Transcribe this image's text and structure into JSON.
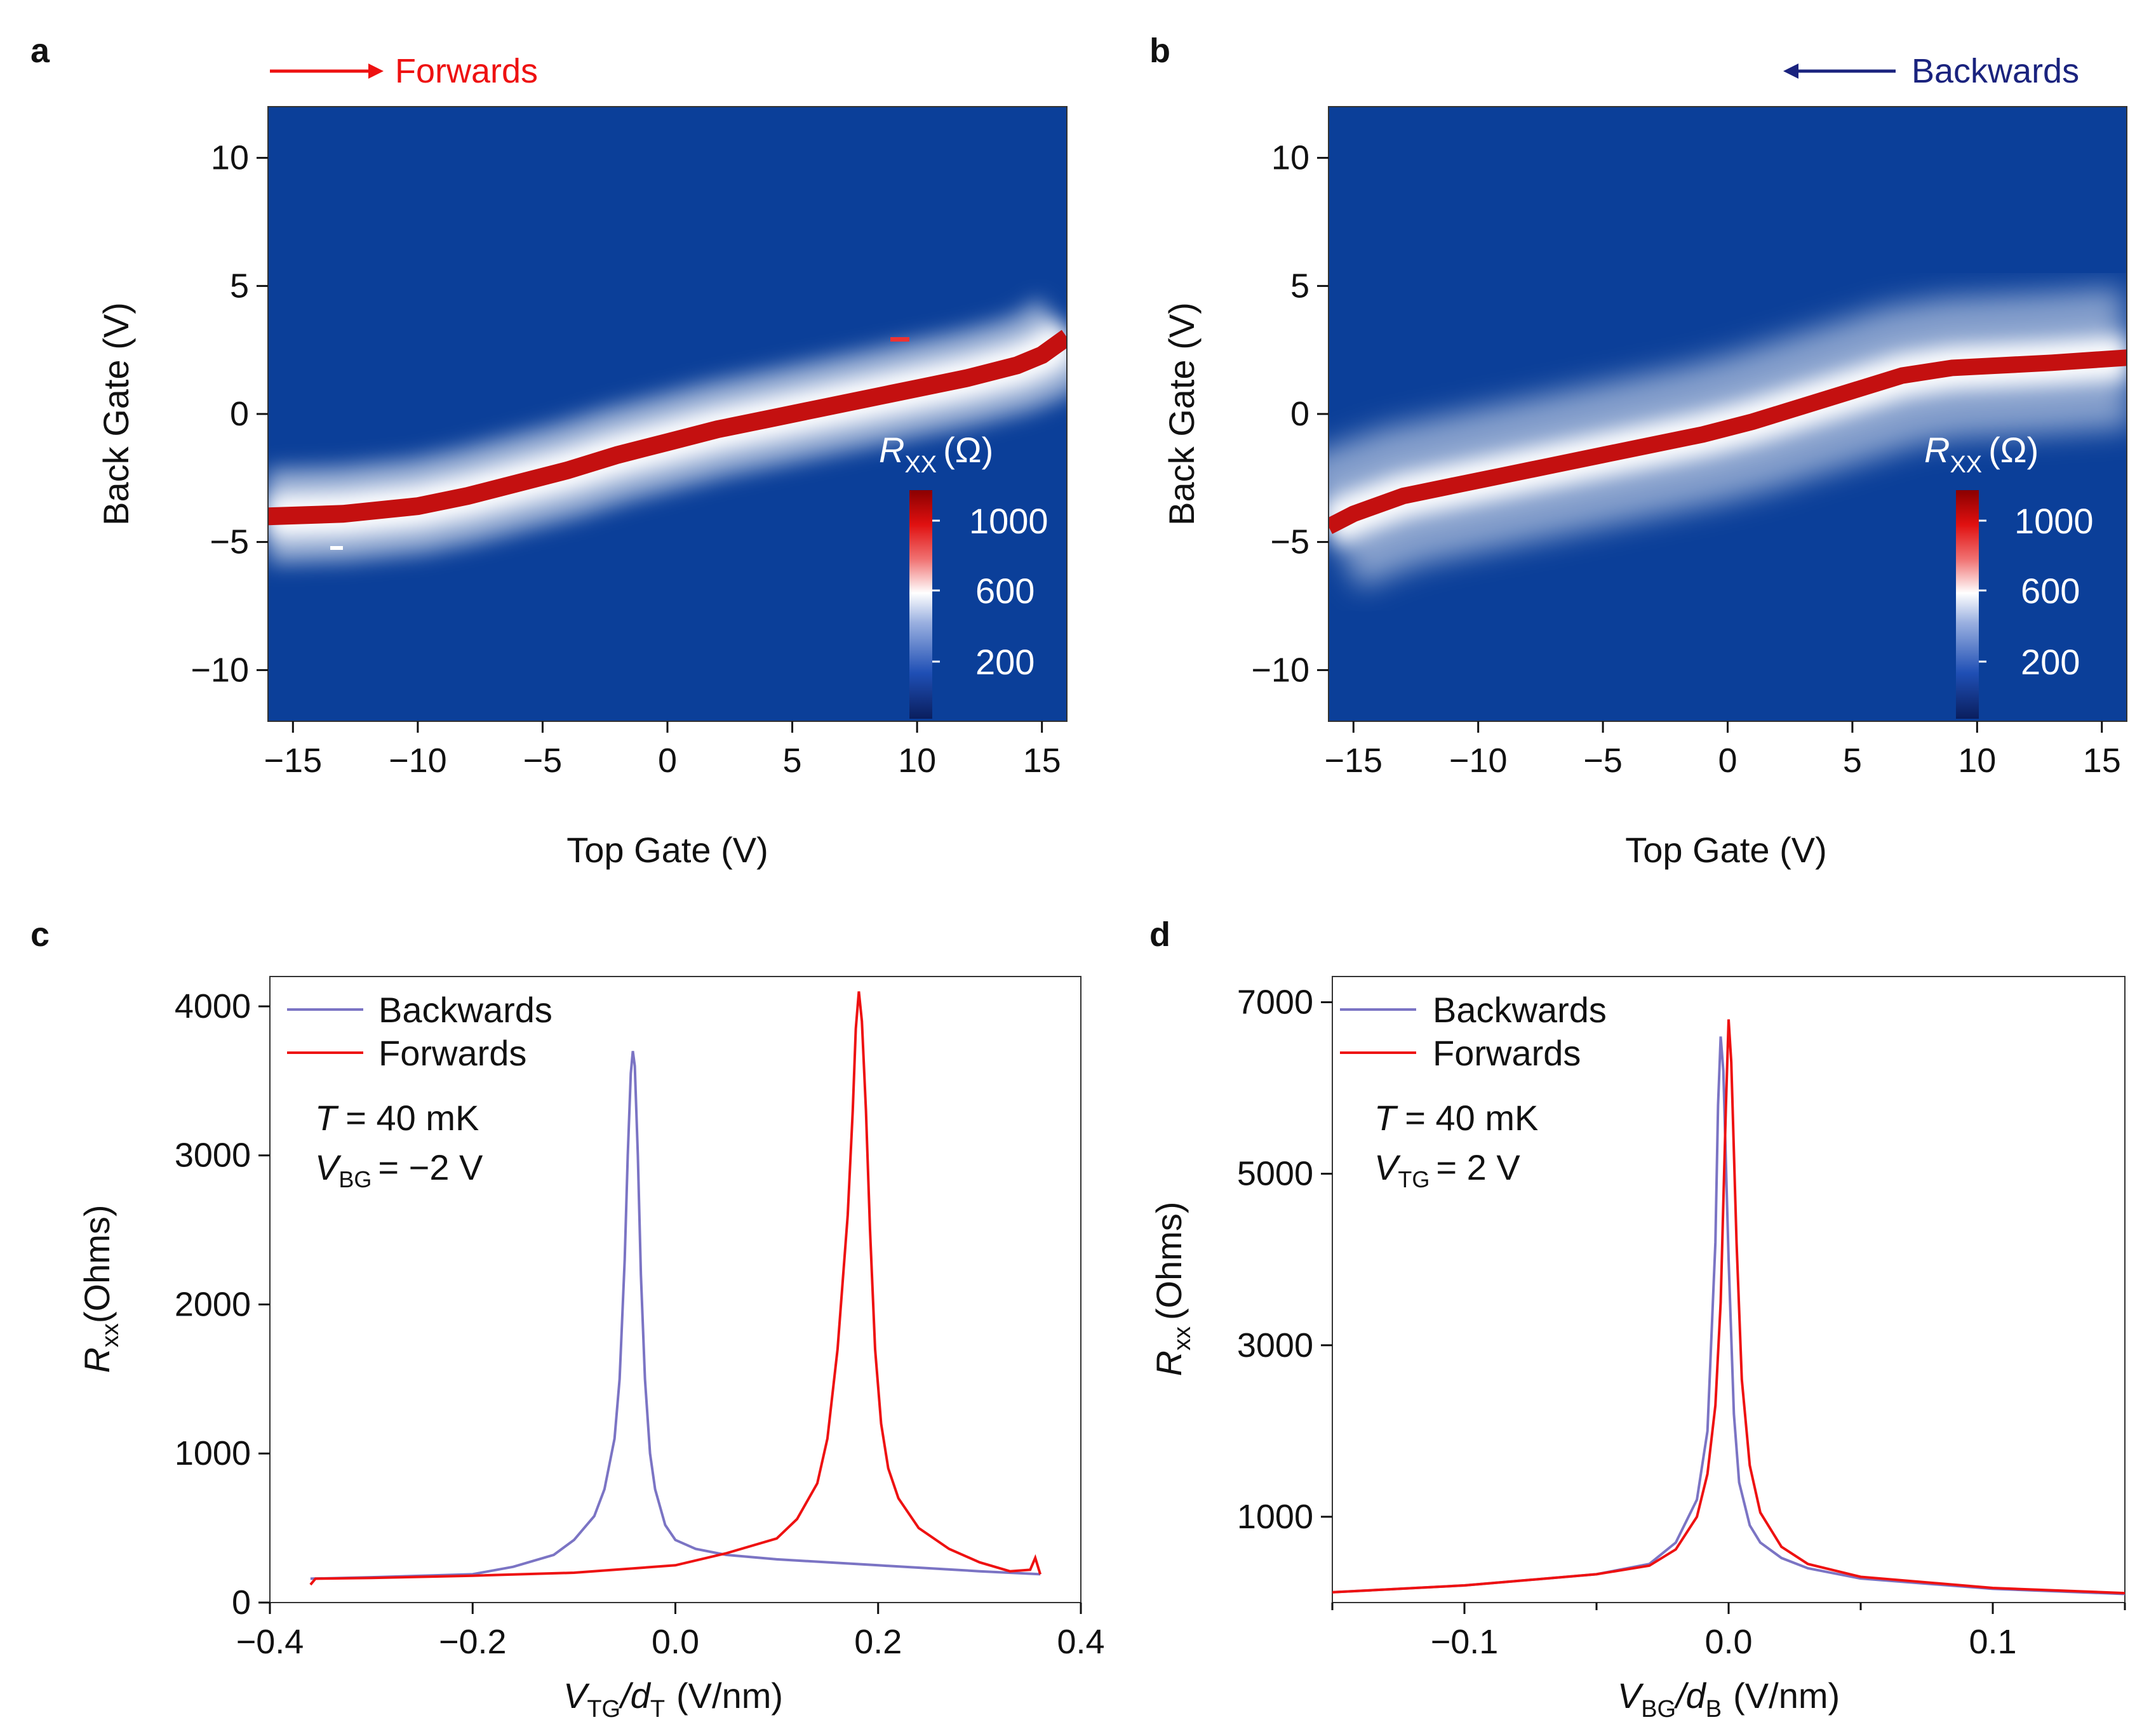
{
  "panels": {
    "a": {
      "letter": "a",
      "direction_label": "Forwards",
      "direction_color": "#ee1111",
      "xlabel": "Top Gate (V)",
      "ylabel": "Back Gate (V)",
      "xticks": [
        "−15",
        "−10",
        "−5",
        "0",
        "5",
        "10",
        "15"
      ],
      "yticks": [
        "10",
        "5",
        "0",
        "−5",
        "−10"
      ],
      "colorbar_title_main": "R",
      "colorbar_title_sub": "XX",
      "colorbar_title_unit": "(Ω)",
      "colorbar_ticks": [
        "1000",
        "600",
        "200"
      ]
    },
    "b": {
      "letter": "b",
      "direction_label": "Backwards",
      "direction_color": "#1a237e",
      "xlabel": "Top Gate (V)",
      "ylabel": "Back Gate (V)",
      "xticks": [
        "−15",
        "−10",
        "−5",
        "0",
        "5",
        "10",
        "15"
      ],
      "yticks": [
        "10",
        "5",
        "0",
        "−5",
        "−10"
      ],
      "colorbar_title_main": "R",
      "colorbar_title_sub": "XX",
      "colorbar_title_unit": "(Ω)",
      "colorbar_ticks": [
        "1000",
        "600",
        "200"
      ]
    },
    "c": {
      "letter": "c",
      "xlabel_main": "V",
      "xlabel_sub1": "TG",
      "xlabel_mid": "/d",
      "xlabel_sub2": "T",
      "xlabel_unit": "(V/nm)",
      "ylabel_main": "R",
      "ylabel_sub": "xx",
      "ylabel_unit": "(Ohms)",
      "xticks": [
        "−0.4",
        "−0.2",
        "0.0",
        "0.2",
        "0.4"
      ],
      "yticks": [
        "4000",
        "3000",
        "2000",
        "1000",
        "0"
      ],
      "legend_backwards": "Backwards",
      "legend_forwards": "Forwards",
      "ann_T_var": "T",
      "ann_T_val": "= 40 mK",
      "ann_V_var": "V",
      "ann_V_sub": "BG",
      "ann_V_val": "= −2 V"
    },
    "d": {
      "letter": "d",
      "xlabel_main": "V",
      "xlabel_sub1": "BG",
      "xlabel_mid": "/d",
      "xlabel_sub2": "B",
      "xlabel_unit": "(V/nm)",
      "ylabel_main": "R",
      "ylabel_sub": "xx",
      "ylabel_unit": "(Ohms)",
      "xticks": [
        "−0.1",
        "0.0",
        "0.1"
      ],
      "yticks": [
        "7000",
        "5000",
        "3000",
        "1000"
      ],
      "legend_backwards": "Backwards",
      "legend_forwards": "Forwards",
      "ann_T_var": "T",
      "ann_T_val": "= 40 mK",
      "ann_V_var": "V",
      "ann_V_sub": "TG",
      "ann_V_val": "= 2 V"
    }
  },
  "colors": {
    "forwards": "#ee1111",
    "backwards": "#7b74c4",
    "map_background": "#0b3f99",
    "peak": "#c41010"
  },
  "chart_data": [
    {
      "panel": "a",
      "type": "heatmap",
      "title": "Forwards",
      "xlabel": "Top Gate (V)",
      "ylabel": "Back Gate (V)",
      "xlim": [
        -16,
        16
      ],
      "ylim": [
        -12,
        12
      ],
      "colorbar": {
        "label": "R_XX (Ω)",
        "range": [
          0,
          1200
        ],
        "ticks": [
          200,
          600,
          1000
        ]
      },
      "ridge": {
        "description": "Charge neutrality line (high resistance ridge)",
        "x": [
          -16,
          -13,
          -10,
          -8,
          -6,
          -4,
          -2,
          0,
          2,
          4,
          6,
          8,
          10,
          12,
          14,
          15,
          16
        ],
        "y": [
          -4.0,
          -3.9,
          -3.6,
          -3.2,
          -2.7,
          -2.2,
          -1.6,
          -1.1,
          -0.6,
          -0.2,
          0.2,
          0.6,
          1.0,
          1.4,
          1.9,
          2.3,
          3.0
        ]
      }
    },
    {
      "panel": "b",
      "type": "heatmap",
      "title": "Backwards",
      "xlabel": "Top Gate (V)",
      "ylabel": "Back Gate (V)",
      "xlim": [
        -16,
        16
      ],
      "ylim": [
        -12,
        12
      ],
      "colorbar": {
        "label": "R_XX (Ω)",
        "range": [
          0,
          1200
        ],
        "ticks": [
          200,
          600,
          1000
        ]
      },
      "ridge": {
        "description": "Charge neutrality line (high resistance ridge)",
        "x": [
          -16,
          -15,
          -13,
          -11,
          -9,
          -7,
          -5,
          -3,
          -1,
          1,
          3,
          5,
          7,
          9,
          11,
          13,
          16
        ],
        "y": [
          -4.4,
          -3.9,
          -3.2,
          -2.8,
          -2.4,
          -2.0,
          -1.6,
          -1.2,
          -0.8,
          -0.3,
          0.3,
          0.9,
          1.5,
          1.8,
          1.9,
          2.0,
          2.2
        ]
      }
    },
    {
      "panel": "c",
      "type": "line",
      "xlabel": "V_TG/d_T (V/nm)",
      "ylabel": "R_xx (Ohms)",
      "xlim": [
        -0.4,
        0.4
      ],
      "ylim": [
        0,
        4200
      ],
      "annotation": [
        "T = 40 mK",
        "V_BG = −2 V"
      ],
      "series": [
        {
          "name": "Backwards",
          "x": [
            -0.36,
            -0.3,
            -0.2,
            -0.16,
            -0.12,
            -0.1,
            -0.08,
            -0.07,
            -0.06,
            -0.055,
            -0.05,
            -0.047,
            -0.044,
            -0.042,
            -0.04,
            -0.037,
            -0.034,
            -0.03,
            -0.025,
            -0.02,
            -0.01,
            0.0,
            0.02,
            0.05,
            0.1,
            0.2,
            0.3,
            0.36
          ],
          "values": [
            160,
            170,
            190,
            240,
            320,
            420,
            580,
            760,
            1100,
            1500,
            2300,
            3000,
            3550,
            3700,
            3600,
            3000,
            2200,
            1500,
            1000,
            760,
            520,
            420,
            360,
            320,
            290,
            250,
            210,
            190
          ]
        },
        {
          "name": "Forwards",
          "x": [
            -0.36,
            -0.355,
            -0.3,
            -0.2,
            -0.1,
            0.0,
            0.05,
            0.1,
            0.12,
            0.14,
            0.15,
            0.16,
            0.17,
            0.175,
            0.178,
            0.181,
            0.184,
            0.188,
            0.192,
            0.197,
            0.203,
            0.21,
            0.22,
            0.24,
            0.27,
            0.3,
            0.33,
            0.35,
            0.355,
            0.36
          ],
          "values": [
            120,
            160,
            165,
            180,
            200,
            250,
            330,
            430,
            560,
            800,
            1100,
            1700,
            2600,
            3300,
            3850,
            4100,
            3900,
            3300,
            2500,
            1700,
            1200,
            900,
            700,
            500,
            360,
            270,
            210,
            220,
            300,
            190
          ]
        }
      ]
    },
    {
      "panel": "d",
      "type": "line",
      "xlabel": "V_BG/d_B (V/nm)",
      "ylabel": "R_xx (Ohms)",
      "xlim": [
        -0.15,
        0.15
      ],
      "ylim": [
        0,
        7300
      ],
      "annotation": [
        "T = 40 mK",
        "V_TG = 2 V"
      ],
      "series": [
        {
          "name": "Backwards",
          "x": [
            -0.15,
            -0.1,
            -0.05,
            -0.03,
            -0.02,
            -0.012,
            -0.008,
            -0.005,
            -0.004,
            -0.003,
            -0.002,
            0.0,
            0.002,
            0.004,
            0.008,
            0.012,
            0.02,
            0.03,
            0.05,
            0.1,
            0.15
          ],
          "values": [
            120,
            200,
            330,
            450,
            700,
            1200,
            2000,
            4200,
            5800,
            6600,
            6200,
            4000,
            2200,
            1400,
            900,
            700,
            520,
            400,
            280,
            160,
            100
          ]
        },
        {
          "name": "Forwards",
          "x": [
            -0.15,
            -0.1,
            -0.05,
            -0.03,
            -0.02,
            -0.012,
            -0.008,
            -0.005,
            -0.003,
            -0.001,
            0.0,
            0.001,
            0.003,
            0.005,
            0.008,
            0.012,
            0.02,
            0.03,
            0.05,
            0.1,
            0.15
          ],
          "values": [
            120,
            200,
            330,
            430,
            620,
            1000,
            1500,
            2300,
            3500,
            5800,
            6800,
            6300,
            4200,
            2600,
            1600,
            1050,
            650,
            450,
            300,
            170,
            110
          ]
        }
      ]
    }
  ]
}
